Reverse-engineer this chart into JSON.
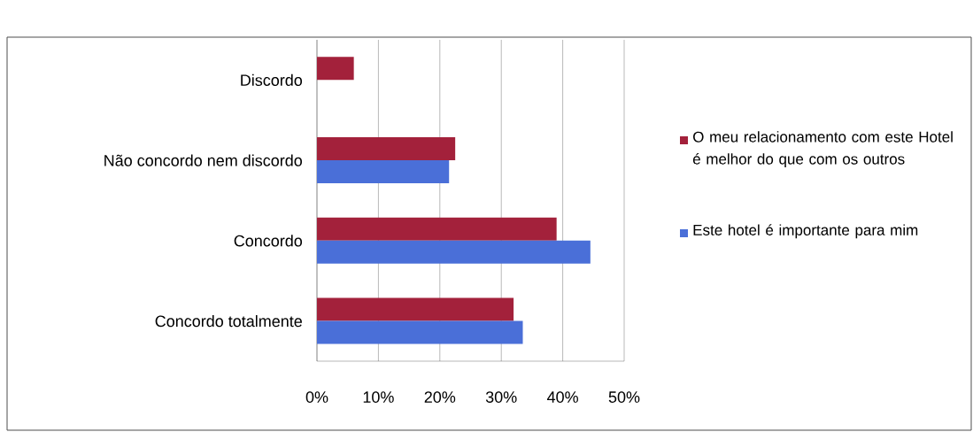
{
  "chart_data": {
    "type": "bar",
    "orientation": "horizontal",
    "categories": [
      "Discordo",
      "Não concordo nem discordo",
      "Concordo",
      "Concordo totalmente"
    ],
    "series": [
      {
        "name": "O meu relacionamento com este Hotel é melhor do que com os outros",
        "color": "#a3213b",
        "values": [
          6,
          22.5,
          39,
          32
        ]
      },
      {
        "name": "Este hotel é importante para mim",
        "color": "#4a6fd8",
        "values": [
          null,
          21.5,
          44.5,
          33.5
        ]
      }
    ],
    "xlim": [
      0,
      50
    ],
    "xticks": [
      {
        "value": 0,
        "label": "0%"
      },
      {
        "value": 10,
        "label": "10%"
      },
      {
        "value": 20,
        "label": "20%"
      },
      {
        "value": 30,
        "label": "30%"
      },
      {
        "value": 40,
        "label": "40%"
      },
      {
        "value": 50,
        "label": "50%"
      }
    ],
    "grid": "x",
    "legend": "right"
  }
}
